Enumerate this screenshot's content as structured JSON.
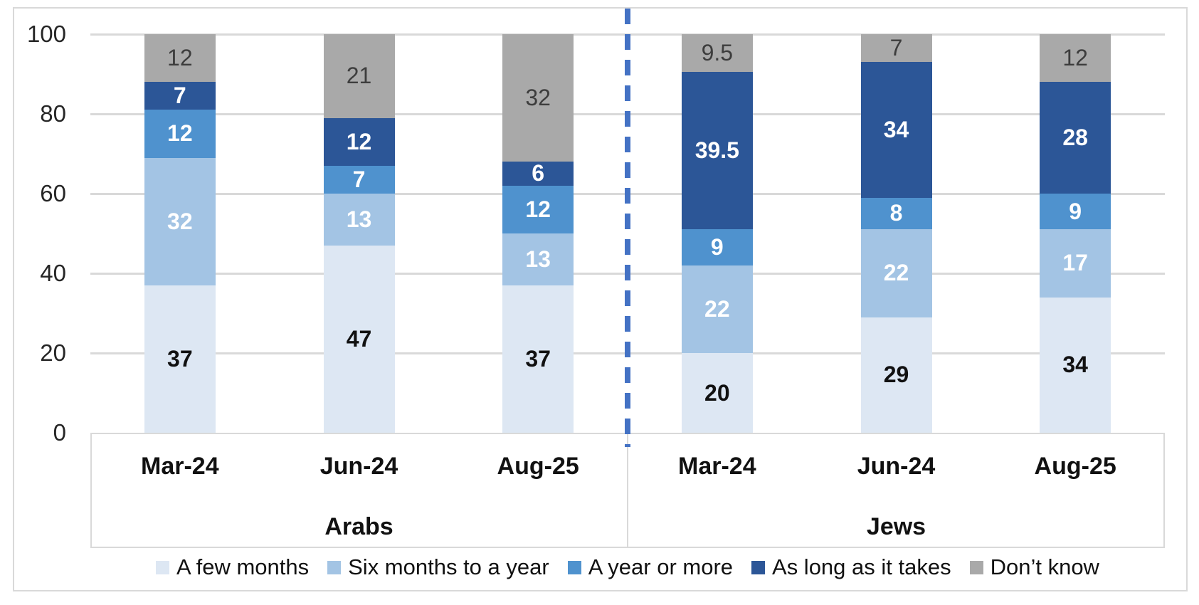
{
  "chart_data": {
    "type": "bar",
    "stacked": true,
    "unit": "percent",
    "title": "",
    "ylim": [
      0,
      100
    ],
    "ytick_labels": [
      "0",
      "20",
      "40",
      "60",
      "80",
      "100"
    ],
    "grid": true,
    "legend_position": "bottom",
    "groups": [
      {
        "label": "Arabs",
        "categories": [
          "Mar-24",
          "Jun-24",
          "Aug-25"
        ]
      },
      {
        "label": "Jews",
        "categories": [
          "Mar-24",
          "Jun-24",
          "Aug-25"
        ]
      }
    ],
    "series": [
      {
        "name": "A few months",
        "color": "#dde7f3",
        "label_color": "#111111",
        "label_bold": true,
        "values": [
          37,
          47,
          37,
          20,
          29,
          34
        ]
      },
      {
        "name": "Six months to a year",
        "color": "#a3c4e4",
        "label_color": "#ffffff",
        "label_bold": true,
        "values": [
          32,
          13,
          13,
          22,
          22,
          17
        ]
      },
      {
        "name": "A year or more",
        "color": "#4f92ce",
        "label_color": "#ffffff",
        "label_bold": true,
        "values": [
          12,
          7,
          12,
          9,
          8,
          9
        ]
      },
      {
        "name": "As long as it takes",
        "color": "#2c5697",
        "label_color": "#ffffff",
        "label_bold": true,
        "values": [
          7,
          12,
          6,
          39.5,
          34,
          28
        ]
      },
      {
        "name": "Don’t know",
        "color": "#a9a9a9",
        "label_color": "#3d3d3d",
        "label_bold": false,
        "values": [
          12,
          21,
          32,
          9.5,
          7,
          12
        ]
      }
    ],
    "separator": {
      "style": "dashed",
      "color": "#4472c4",
      "between": [
        "Arabs",
        "Jews"
      ]
    },
    "frame_color": "#d9d9d9"
  }
}
